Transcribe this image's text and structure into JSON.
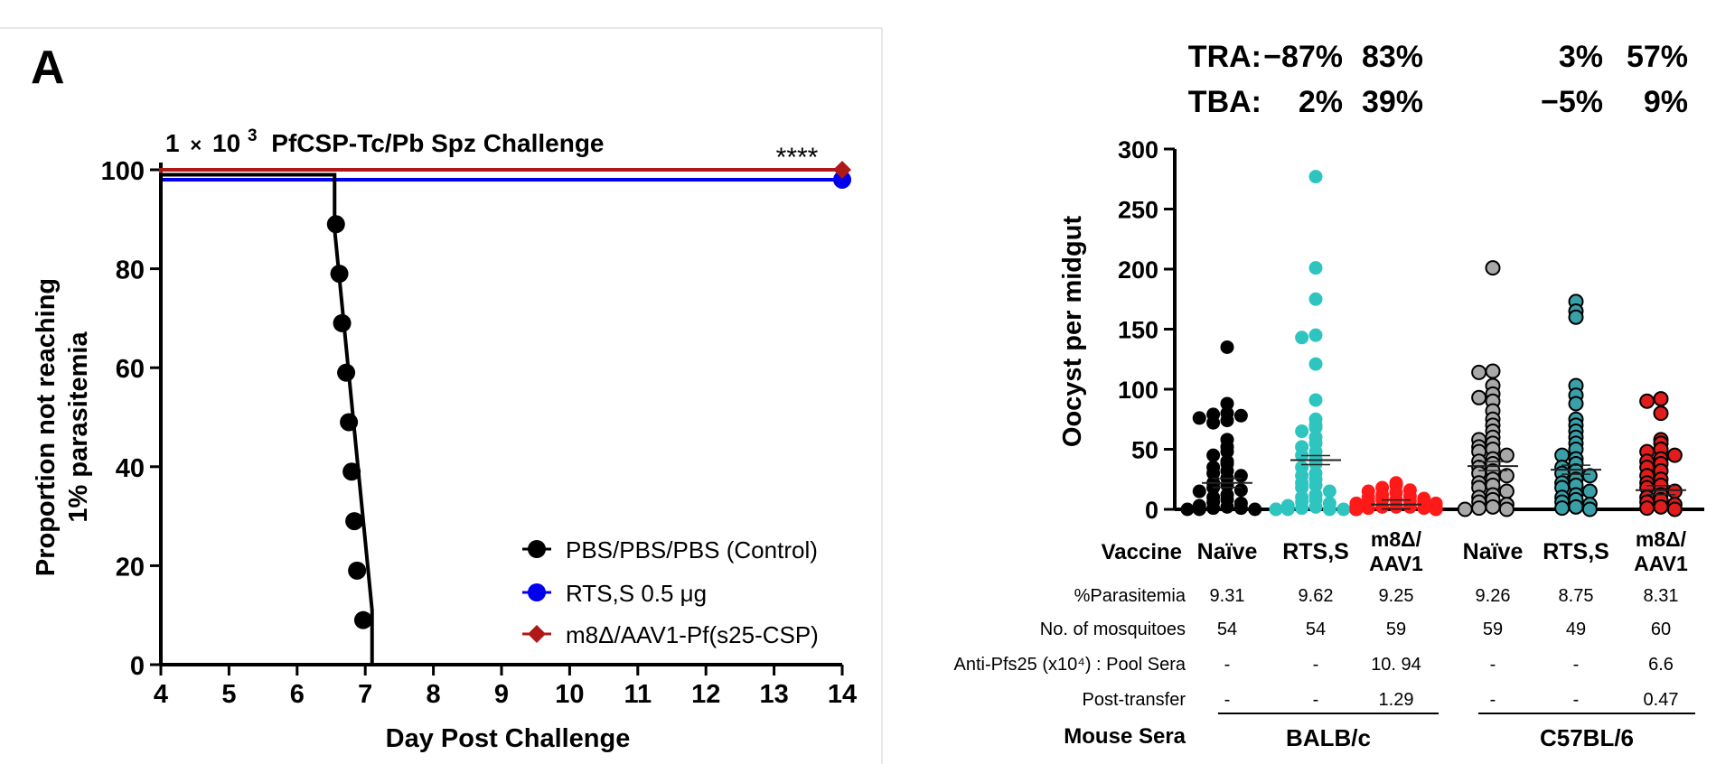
{
  "panel_label": "A",
  "chart_data": [
    {
      "type": "line",
      "title_parts": {
        "pre": "1",
        "times": "×",
        "base": "10",
        "exp": "3",
        "post": "PfCSP-Tc/Pb Spz Challenge"
      },
      "xlabel": "Day Post Challenge",
      "ylabel_lines": [
        "Proportion not reaching",
        "1% parasitemia"
      ],
      "xlim": [
        4,
        14
      ],
      "ylim": [
        0,
        100
      ],
      "xticks": [
        "4",
        "5",
        "6",
        "7",
        "8",
        "9",
        "10",
        "11",
        "12",
        "13",
        "14"
      ],
      "yticks": [
        "0",
        "20",
        "40",
        "60",
        "80",
        "100"
      ],
      "significance": "****",
      "legend_position": "bottom-right",
      "series": [
        {
          "name": "PBS/PBS/PBS (Control)",
          "color": "#000000",
          "marker": "circle",
          "step_x": [
            4,
            4,
            6.55,
            6.55,
            7.1,
            7.1
          ],
          "step_y": [
            0,
            99,
            99,
            88,
            11,
            0
          ],
          "points_x": [
            6.57,
            6.62,
            6.66,
            6.72,
            6.76,
            6.8,
            6.84,
            6.88,
            6.97
          ],
          "points_y": [
            89,
            79,
            69,
            59,
            49,
            39,
            29,
            19,
            9
          ]
        },
        {
          "name": "RTS,S 0.5 μg",
          "color": "#0000ee",
          "marker": "circle",
          "step_x": [
            4,
            4,
            14
          ],
          "step_y": [
            0,
            98,
            98
          ],
          "points_x": [
            14
          ],
          "points_y": [
            98
          ]
        },
        {
          "name": "m8Δ/AAV1-Pf(s25-CSP)",
          "color": "#b01818",
          "marker": "diamond",
          "step_x": [
            4,
            4,
            14
          ],
          "step_y": [
            0,
            100,
            100
          ],
          "points_x": [
            14
          ],
          "points_y": [
            100
          ]
        }
      ]
    },
    {
      "type": "scatter",
      "ylabel": "Oocyst per midgut",
      "ylim": [
        0,
        300
      ],
      "yticks": [
        "0",
        "50",
        "100",
        "150",
        "200",
        "250",
        "300"
      ],
      "tra_label": "TRA:",
      "tba_label": "TBA:",
      "groups": [
        {
          "label": "Naïve",
          "label_lines": [
            "Naïve"
          ],
          "color": "#000000",
          "edge": "#000000",
          "tra": "",
          "tba": "",
          "value_color": "#1a1ae0",
          "mean": 22,
          "values": [
            135,
            88,
            80,
            79,
            78,
            76,
            74,
            72,
            58,
            52,
            48,
            45,
            40,
            38,
            35,
            32,
            30,
            28,
            26,
            22,
            20,
            18,
            16,
            15,
            12,
            10,
            8,
            6,
            5,
            3,
            2,
            1,
            1,
            0,
            0,
            0
          ]
        },
        {
          "label": "RTS,S",
          "label_lines": [
            "RTS,S"
          ],
          "color": "#2ec4c0",
          "edge": "#2ec4c0",
          "tra": "−87%",
          "tba": "2%",
          "value_color": "#1a1ae0",
          "mean": 41,
          "values": [
            277,
            201,
            175,
            145,
            143,
            121,
            91,
            75,
            70,
            68,
            65,
            60,
            55,
            52,
            48,
            45,
            42,
            38,
            35,
            30,
            28,
            25,
            22,
            20,
            18,
            15,
            12,
            10,
            8,
            6,
            5,
            3,
            2,
            1,
            0,
            0,
            0,
            0,
            0,
            0
          ]
        },
        {
          "label": "m8Δ/ AAV1",
          "label_lines": [
            "m8Δ/",
            "AAV1"
          ],
          "color": "#ff1a1a",
          "edge": "#ff1a1a",
          "tra": "83%",
          "tba": "39%",
          "value_color": "#d82020",
          "mean": 4,
          "values": [
            22,
            20,
            18,
            16,
            15,
            14,
            12,
            11,
            10,
            9,
            8,
            8,
            7,
            6,
            6,
            5,
            5,
            4,
            4,
            3,
            3,
            2,
            2,
            2,
            1,
            1,
            1,
            1,
            0,
            0,
            0,
            0,
            0,
            0,
            0,
            0
          ]
        },
        {
          "label": "Naïve",
          "label_lines": [
            "Naïve"
          ],
          "color": "#a8a8a8",
          "edge": "#000000",
          "tra": "",
          "tba": "",
          "value_color": "#1a1ae0",
          "mean": 36,
          "values": [
            201,
            115,
            114,
            103,
            96,
            93,
            90,
            82,
            75,
            70,
            65,
            60,
            58,
            55,
            52,
            50,
            48,
            45,
            42,
            40,
            38,
            35,
            32,
            30,
            28,
            25,
            22,
            20,
            18,
            15,
            12,
            10,
            8,
            6,
            4,
            2,
            1,
            0,
            0
          ]
        },
        {
          "label": "RTS,S",
          "label_lines": [
            "RTS,S"
          ],
          "color": "#3aa0a8",
          "edge": "#000000",
          "tra": "3%",
          "tba": "−5%",
          "value_color": "#1a1ae0",
          "mean": 33,
          "values": [
            173,
            165,
            160,
            103,
            95,
            88,
            75,
            70,
            65,
            60,
            55,
            50,
            45,
            42,
            38,
            35,
            32,
            30,
            28,
            25,
            22,
            20,
            18,
            15,
            12,
            10,
            8,
            6,
            4,
            2,
            1,
            0
          ]
        },
        {
          "label": "m8Δ/ AAV1",
          "label_lines": [
            "m8Δ/",
            "AAV1"
          ],
          "color": "#e01c1c",
          "edge": "#000000",
          "tra": "57%",
          "tba": "9%",
          "value_color": "#b01818",
          "mean": 16,
          "values": [
            92,
            90,
            80,
            58,
            55,
            50,
            48,
            45,
            42,
            40,
            38,
            35,
            32,
            28,
            25,
            22,
            20,
            18,
            15,
            12,
            10,
            8,
            6,
            4,
            2,
            1,
            0
          ]
        }
      ],
      "table": {
        "vaccine_header": "Vaccine",
        "rows": [
          {
            "label": "%Parasitemia",
            "values": [
              "9.31",
              "9.62",
              "9.25",
              "9.26",
              "8.75",
              "8.31"
            ]
          },
          {
            "label": "No. of mosquitoes",
            "values": [
              "54",
              "54",
              "59",
              "59",
              "49",
              "60"
            ]
          },
          {
            "label": "Anti-Pfs25 (x10⁴) : Pool Sera",
            "values": [
              "-",
              "-",
              "10. 94",
              "-",
              "-",
              "6.6"
            ]
          },
          {
            "label": "Post-transfer",
            "values": [
              "-",
              "-",
              "1.29",
              "-",
              "-",
              "0.47"
            ]
          }
        ],
        "mouse_sera_label": "Mouse Sera",
        "strains": [
          "BALB/c",
          "C57BL/6"
        ]
      }
    }
  ]
}
